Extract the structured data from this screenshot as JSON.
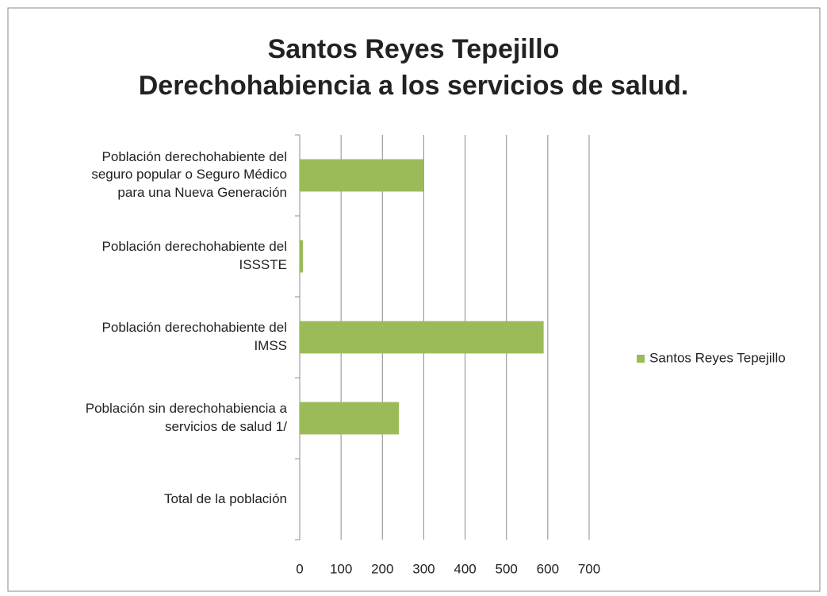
{
  "chart_data": {
    "type": "bar",
    "orientation": "horizontal",
    "title": "Santos Reyes Tepejillo\nDerechohabiencia a los servicios de salud.",
    "categories": [
      "Población derechohabiente del\nseguro popular o Seguro Médico\npara una Nueva Generación",
      "Población derechohabiente del\nISSSTE",
      "Población derechohabiente del\nIMSS",
      "Población sin derechohabiencia a\nservicios de salud 1/",
      "Total de la población"
    ],
    "series": [
      {
        "name": "Santos Reyes Tepejillo",
        "color": "#9bbb59",
        "values": [
          300,
          8,
          590,
          240,
          0
        ]
      }
    ],
    "xlim": [
      0,
      700
    ],
    "xticks": [
      0,
      100,
      200,
      300,
      400,
      500,
      600,
      700
    ],
    "grid": true,
    "legend": "right"
  }
}
